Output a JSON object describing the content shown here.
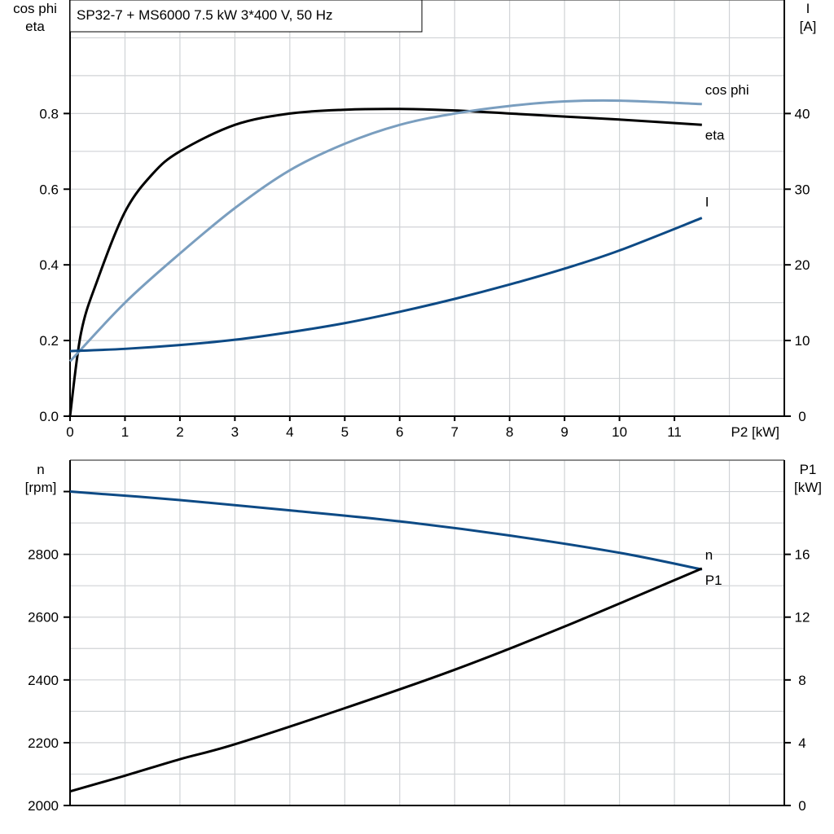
{
  "title": "SP32-7 + MS6000   7.5 kW   3*400 V, 50 Hz",
  "chart_data": [
    {
      "type": "line",
      "xlabel": "P2 [kW]",
      "ylabel_left": [
        "cos phi",
        "eta"
      ],
      "ylabel_right": [
        "I",
        "[A]"
      ],
      "xlim": [
        0,
        13
      ],
      "ylim_left": [
        0,
        1.1
      ],
      "ylim_right": [
        0,
        55
      ],
      "x_ticks": [
        0,
        1,
        2,
        3,
        4,
        5,
        6,
        7,
        8,
        9,
        10,
        11
      ],
      "y_ticks_left": [
        "0.0",
        "0.2",
        "0.4",
        "0.6",
        "0.8"
      ],
      "y_ticks_right": [
        "0",
        "10",
        "20",
        "30",
        "40"
      ],
      "grid": true,
      "series": [
        {
          "name": "eta",
          "axis": "left",
          "color": "#000000",
          "x": [
            0,
            0.2,
            0.5,
            1,
            1.5,
            2,
            3,
            4,
            5,
            6,
            7,
            8,
            9,
            10,
            11.5
          ],
          "y": [
            0,
            0.22,
            0.36,
            0.54,
            0.64,
            0.7,
            0.77,
            0.8,
            0.81,
            0.812,
            0.808,
            0.8,
            0.792,
            0.784,
            0.77
          ]
        },
        {
          "name": "cos phi",
          "axis": "left",
          "color": "#7a9ebf",
          "x": [
            0,
            1,
            2,
            3,
            4,
            5,
            6,
            7,
            8,
            9,
            10,
            11.5
          ],
          "y": [
            0.145,
            0.3,
            0.43,
            0.55,
            0.65,
            0.72,
            0.77,
            0.8,
            0.82,
            0.832,
            0.834,
            0.825
          ]
        },
        {
          "name": "I",
          "axis": "right",
          "color": "#0d4a85",
          "x": [
            0,
            1,
            2,
            3,
            4,
            5,
            6,
            7,
            8,
            9,
            10,
            11.5
          ],
          "y": [
            8.6,
            8.9,
            9.4,
            10.1,
            11.1,
            12.3,
            13.8,
            15.5,
            17.4,
            19.5,
            21.9,
            26.2
          ]
        }
      ]
    },
    {
      "type": "line",
      "ylabel_left": [
        "n",
        "[rpm]"
      ],
      "ylabel_right": [
        "P1",
        "[kW]"
      ],
      "xlim": [
        0,
        13
      ],
      "ylim_left": [
        2000,
        3100
      ],
      "ylim_right": [
        0,
        22
      ],
      "y_ticks_left": [
        "2000",
        "2200",
        "2400",
        "2600",
        "2800"
      ],
      "y_ticks_right": [
        "0",
        "4",
        "8",
        "12",
        "16"
      ],
      "grid": true,
      "series": [
        {
          "name": "n",
          "axis": "left",
          "color": "#0d4a85",
          "x": [
            0,
            2,
            4,
            6,
            8,
            10,
            11.5
          ],
          "y": [
            3000,
            2973,
            2940,
            2905,
            2860,
            2805,
            2752
          ]
        },
        {
          "name": "P1",
          "axis": "right",
          "color": "#000000",
          "x": [
            0,
            1,
            2,
            3,
            5,
            7,
            9,
            11.5
          ],
          "y": [
            0.9,
            1.9,
            2.95,
            3.9,
            6.2,
            8.65,
            11.4,
            15.1
          ]
        }
      ]
    }
  ]
}
